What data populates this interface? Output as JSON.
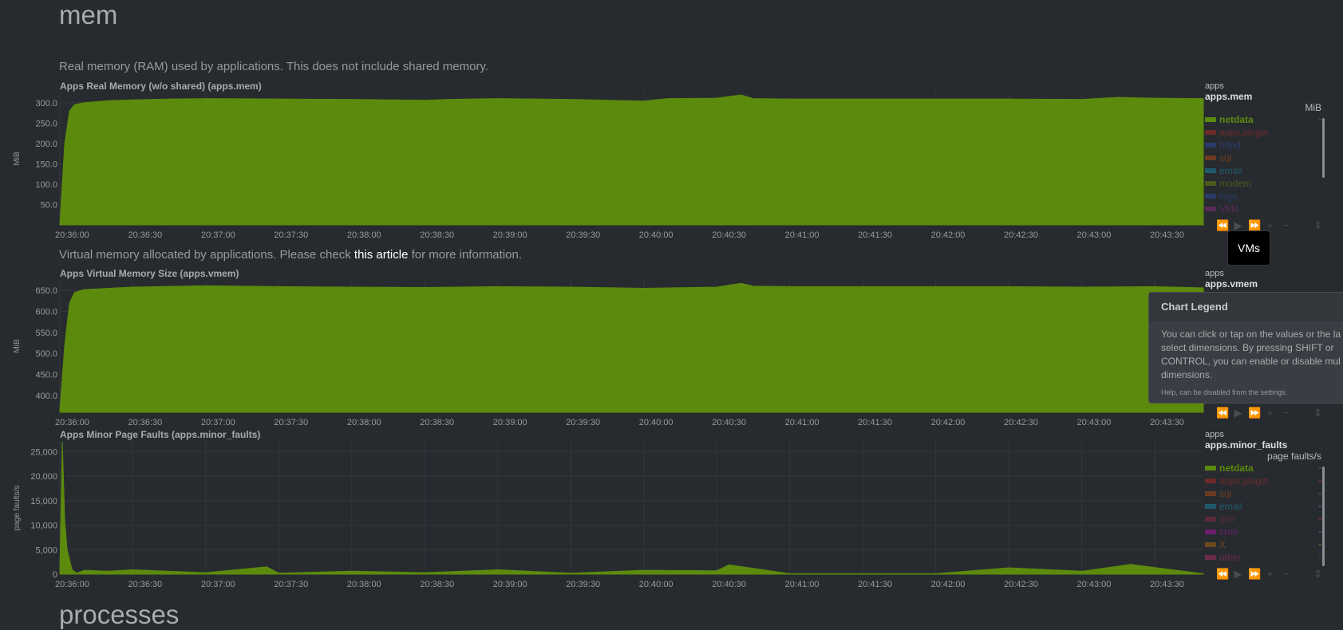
{
  "section": {
    "title": "mem",
    "next_title": "processes"
  },
  "descriptions": {
    "mem": "Real memory (RAM) used by applications. This does not include shared memory.",
    "vmem_pre": "Virtual memory allocated by applications. Please check ",
    "vmem_link": "this article",
    "vmem_post": " for more information."
  },
  "tooltip": "VMs",
  "popover": {
    "title": "Chart Legend",
    "body": "You can click or tap on the values or the la select dimensions. By pressing SHIFT or CONTROL, you can enable or disable mul dimensions.",
    "footer": "Help, can be disabled from the settings."
  },
  "toolbar_icons": [
    "backward-icon",
    "play-icon",
    "forward-icon",
    "zoom-in-icon",
    "zoom-out-icon",
    "resize-icon"
  ],
  "x_ticks": [
    "20:36:00",
    "20:36:30",
    "20:37:00",
    "20:37:30",
    "20:38:00",
    "20:38:30",
    "20:39:00",
    "20:39:30",
    "20:40:00",
    "20:40:30",
    "20:41:00",
    "20:41:30",
    "20:42:00",
    "20:42:30",
    "20:43:00",
    "20:43:30"
  ],
  "chart_data": [
    {
      "type": "area",
      "title": "Apps Real Memory (w/o shared) (apps.mem)",
      "ylabel": "MiB",
      "family": "apps",
      "id": "apps.mem",
      "units": "MiB",
      "ylim": [
        0,
        325
      ],
      "y_ticks": [
        300.0,
        250.0,
        200.0,
        150.0,
        100.0,
        50.0
      ],
      "y_tick_labels": [
        "300.0",
        "250.0",
        "200.0",
        "150.0",
        "100.0",
        "50.0"
      ],
      "color": "#5c8a0c",
      "x": [
        "20:36:00",
        "20:36:02",
        "20:36:04",
        "20:36:06",
        "20:36:10",
        "20:36:20",
        "20:36:30",
        "20:36:45",
        "20:37:00",
        "20:37:30",
        "20:38:00",
        "20:38:30",
        "20:38:40",
        "20:39:00",
        "20:39:30",
        "20:40:00",
        "20:40:10",
        "20:40:30",
        "20:40:40",
        "20:40:45",
        "20:41:00",
        "20:41:30",
        "20:42:00",
        "20:42:30",
        "20:43:00",
        "20:43:15",
        "20:43:30",
        "20:43:50"
      ],
      "series": [
        {
          "name": "netdata",
          "values": [
            0,
            200,
            280,
            295,
            300,
            305,
            307,
            309,
            310,
            309,
            308,
            306,
            308,
            310,
            308,
            304,
            310,
            311,
            319,
            310,
            309,
            309,
            309,
            309,
            308,
            313,
            311,
            310
          ]
        }
      ],
      "legend": [
        {
          "name": "netdata",
          "color": "#5c8a0c",
          "value": "-",
          "selected": true
        },
        {
          "name": "apps.plugin",
          "color": "#6b2b2b",
          "value": "",
          "selected": false
        },
        {
          "name": "httpd",
          "color": "#2d3a6b",
          "value": "",
          "selected": false
        },
        {
          "name": "sql",
          "color": "#6b3b22",
          "value": "",
          "selected": false
        },
        {
          "name": "email",
          "color": "#1f5a6b",
          "value": "",
          "selected": false
        },
        {
          "name": "modem",
          "color": "#4a5a1c",
          "value": "",
          "selected": false
        },
        {
          "name": "logs",
          "color": "#2a3a6b",
          "value": "",
          "selected": false
        },
        {
          "name": "VMs",
          "color": "#5a2a5a",
          "value": "",
          "selected": false
        }
      ]
    },
    {
      "type": "area",
      "title": "Apps Virtual Memory Size (apps.vmem)",
      "ylabel": "MiB",
      "family": "apps",
      "id": "apps.vmem",
      "units": "",
      "ylim": [
        360,
        675
      ],
      "y_ticks": [
        650.0,
        600.0,
        550.0,
        500.0,
        450.0,
        400.0
      ],
      "y_tick_labels": [
        "650.0",
        "600.0",
        "550.0",
        "500.0",
        "450.0",
        "400.0"
      ],
      "color": "#5c8a0c",
      "x": [
        "20:36:00",
        "20:36:02",
        "20:36:04",
        "20:36:06",
        "20:36:10",
        "20:36:20",
        "20:36:30",
        "20:37:00",
        "20:37:30",
        "20:38:00",
        "20:38:30",
        "20:39:00",
        "20:39:30",
        "20:40:00",
        "20:40:30",
        "20:40:40",
        "20:40:45",
        "20:41:00",
        "20:41:30",
        "20:42:00",
        "20:42:30",
        "20:43:00",
        "20:43:30",
        "20:43:50"
      ],
      "series": [
        {
          "name": "netdata",
          "values": [
            365,
            520,
            620,
            645,
            652,
            655,
            658,
            661,
            659,
            658,
            657,
            659,
            658,
            655,
            658,
            667,
            660,
            659,
            659,
            659,
            659,
            658,
            659,
            656
          ]
        }
      ],
      "legend": []
    },
    {
      "type": "area",
      "title": "Apps Minor Page Faults (apps.minor_faults)",
      "ylabel": "page faults/s",
      "family": "apps",
      "id": "apps.minor_faults",
      "units": "page faults/s",
      "ylim": [
        0,
        27000
      ],
      "y_ticks": [
        25000,
        20000,
        15000,
        10000,
        5000,
        0
      ],
      "y_tick_labels": [
        "25,000",
        "20,000",
        "15,000",
        "10,000",
        "5,000",
        "0"
      ],
      "color": "#5c8a0c",
      "x": [
        "20:36:00",
        "20:36:01",
        "20:36:02",
        "20:36:03",
        "20:36:05",
        "20:36:07",
        "20:36:10",
        "20:36:20",
        "20:36:30",
        "20:37:00",
        "20:37:25",
        "20:37:30",
        "20:38:00",
        "20:38:30",
        "20:39:00",
        "20:39:30",
        "20:40:00",
        "20:40:30",
        "20:40:35",
        "20:41:00",
        "20:41:30",
        "20:42:00",
        "20:42:30",
        "20:43:00",
        "20:43:20",
        "20:43:50"
      ],
      "series": [
        {
          "name": "netdata",
          "values": [
            300,
            27000,
            11000,
            5000,
            900,
            200,
            800,
            600,
            900,
            300,
            1500,
            200,
            600,
            300,
            900,
            200,
            800,
            700,
            1900,
            100,
            100,
            100,
            1300,
            600,
            2000,
            100
          ]
        }
      ],
      "legend": [
        {
          "name": "netdata",
          "color": "#5c8a0c",
          "value": "-",
          "selected": true,
          "value_color": "#5c8a0c"
        },
        {
          "name": "apps.plugin",
          "color": "#6b2b2b",
          "value": "-",
          "selected": false,
          "value_color": "#c0392b"
        },
        {
          "name": "sql",
          "color": "#6b3b22",
          "value": "-",
          "selected": false,
          "value_color": "#d35400"
        },
        {
          "name": "email",
          "color": "#1f5a6b",
          "value": "-",
          "selected": false,
          "value_color": "#2a9fd6"
        },
        {
          "name": "ssh",
          "color": "#5a2a3a",
          "value": "-",
          "selected": false,
          "value_color": "#c0392b"
        },
        {
          "name": "cron",
          "color": "#6b1f6b",
          "value": "-",
          "selected": false,
          "value_color": "#9b59b6"
        },
        {
          "name": "X",
          "color": "#6b4a1c",
          "value": "-",
          "selected": false,
          "value_color": "#e67e22"
        },
        {
          "name": "other",
          "color": "#6b2b4a",
          "value": "-",
          "selected": false,
          "value_color": "#c0392b"
        }
      ]
    }
  ]
}
